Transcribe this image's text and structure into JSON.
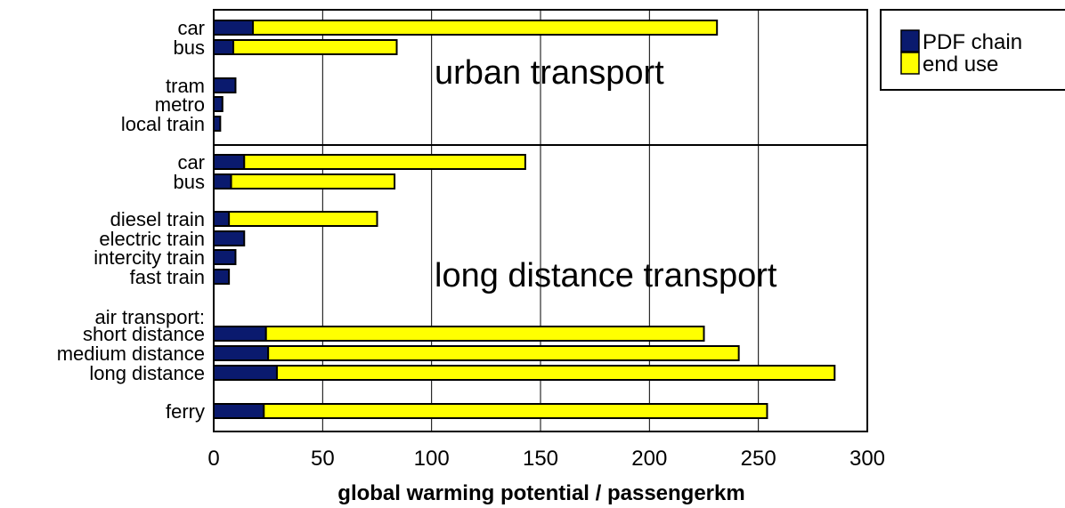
{
  "chart_data": {
    "type": "bar",
    "orientation": "horizontal",
    "stacked": true,
    "xlabel": "global warming potential / passengerkm",
    "xlim": [
      0,
      300
    ],
    "xticks": [
      0,
      50,
      100,
      150,
      200,
      250,
      300
    ],
    "grid": true,
    "legend_placement": "right-top",
    "colors": {
      "PDF chain": "#0a1a6e",
      "end use": "#ffff00"
    },
    "sections": [
      {
        "label": "urban transport"
      },
      {
        "label": "long distance transport"
      }
    ],
    "extra_labels": [
      "air transport:"
    ],
    "categories": [
      {
        "label": "car",
        "section": 0
      },
      {
        "label": "bus",
        "section": 0
      },
      {
        "label": "tram",
        "section": 0
      },
      {
        "label": "metro",
        "section": 0
      },
      {
        "label": "local train",
        "section": 0
      },
      {
        "label": "car",
        "section": 1
      },
      {
        "label": "bus",
        "section": 1
      },
      {
        "label": "diesel train",
        "section": 1
      },
      {
        "label": "electric train",
        "section": 1
      },
      {
        "label": "intercity train",
        "section": 1
      },
      {
        "label": "fast train",
        "section": 1
      },
      {
        "label": "short distance",
        "section": 1
      },
      {
        "label": "medium distance",
        "section": 1
      },
      {
        "label": "long distance",
        "section": 1
      },
      {
        "label": "ferry",
        "section": 1
      }
    ],
    "series": [
      {
        "name": "PDF chain",
        "values": [
          18,
          9,
          10,
          4,
          3,
          14,
          8,
          7,
          14,
          10,
          7,
          24,
          25,
          29,
          23
        ]
      },
      {
        "name": "end use",
        "values": [
          213,
          75,
          0,
          0,
          0,
          129,
          75,
          68,
          0,
          0,
          0,
          201,
          216,
          256,
          231
        ]
      }
    ]
  }
}
